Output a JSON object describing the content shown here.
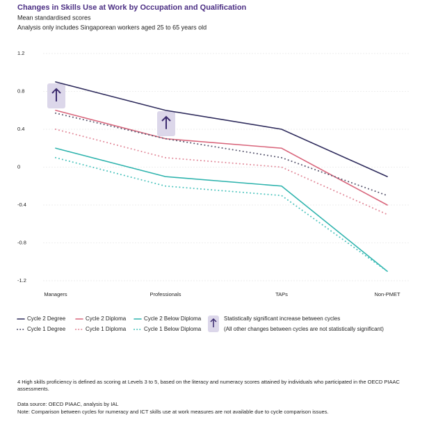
{
  "chart_data": {
    "type": "line",
    "title": "Changes in Skills Use at Work by Occupation and Qualification",
    "subtitles": [
      "Mean standardised scores",
      "Analysis only includes Singaporean workers aged 25 to 65 years old"
    ],
    "categories": [
      "Managers",
      "Professionals",
      "TAPs",
      "Non-PMET"
    ],
    "series": [
      {
        "name": "Cycle 2 Degree",
        "color": "#2e2b5c",
        "style": "solid",
        "values": [
          0.9,
          0.6,
          0.4,
          -0.1
        ]
      },
      {
        "name": "Cycle 2 Diploma",
        "color": "#d9657b",
        "style": "solid",
        "values": [
          0.6,
          0.3,
          0.2,
          -0.4
        ]
      },
      {
        "name": "Cycle 2 Below Diploma",
        "color": "#2db3ad",
        "style": "solid",
        "values": [
          0.2,
          -0.1,
          -0.2,
          -1.1
        ]
      },
      {
        "name": "Cycle 1 Degree",
        "color": "#5a5870",
        "style": "dotted",
        "values": [
          0.57,
          0.3,
          0.1,
          -0.3
        ]
      },
      {
        "name": "Cycle 1 Diploma",
        "color": "#e28a9a",
        "style": "dotted",
        "values": [
          0.4,
          0.1,
          0.0,
          -0.5
        ]
      },
      {
        "name": "Cycle 1 Below Diploma",
        "color": "#4cc4bd",
        "style": "dotted",
        "values": [
          0.1,
          -0.2,
          -0.3,
          -1.1
        ]
      }
    ],
    "ylim": [
      -1.2,
      1.2
    ],
    "yticks": [
      1.2,
      0.8,
      0.4,
      0,
      -0.4,
      -0.8,
      -1.2
    ],
    "grid": true,
    "legend_notes": [
      "Statistically significant increase between cycles",
      "(All other changes between cycles are not statistically significant)"
    ]
  },
  "footnotes": [
    "4  High skills proficiency is defined as scoring at Levels 3 to 5, based on the literacy and numeracy scores attained by individuals who participated in the OECD PIAAC assessments.",
    "Data source: OECD PIAAC, analysis by IAL",
    "Note: Comparison between cycles for numeracy and ICT skills use at work measures are not available due to cycle comparison issues."
  ]
}
